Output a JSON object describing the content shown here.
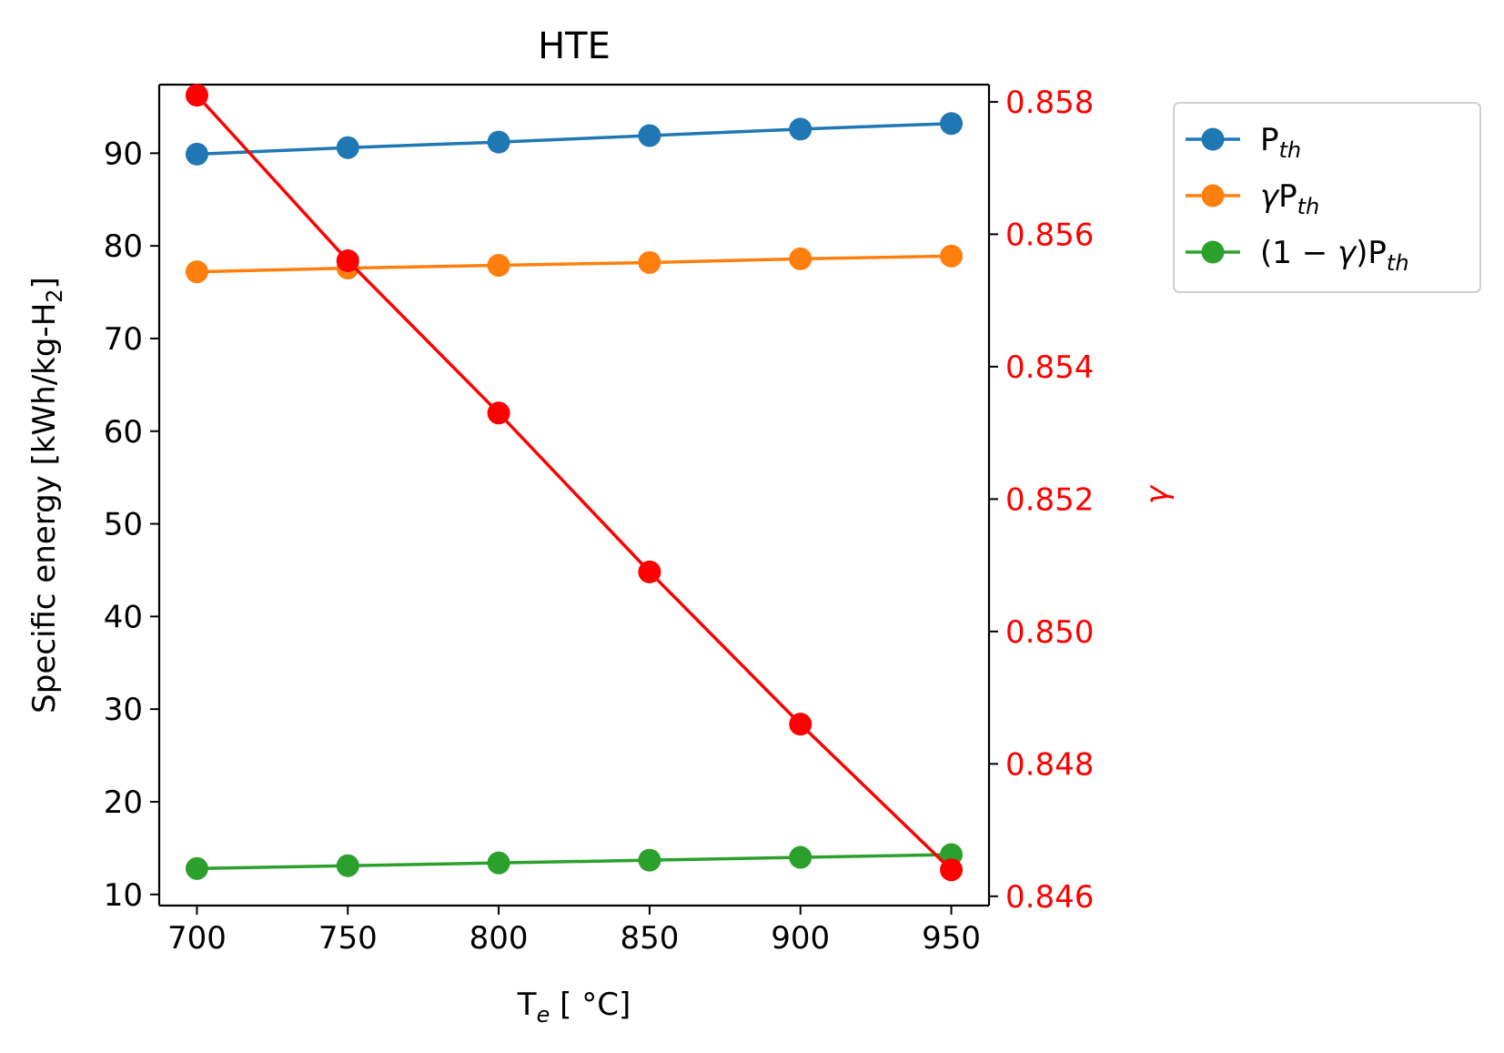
{
  "chart_data": {
    "type": "line",
    "title": "HTE",
    "x": [
      700,
      750,
      800,
      850,
      900,
      950
    ],
    "xlabel": {
      "main": "T",
      "sub": "e",
      "rest": " [ °C]"
    },
    "xlim": [
      687.5,
      962.5
    ],
    "xticks": [
      700,
      750,
      800,
      850,
      900,
      950
    ],
    "ylabel": {
      "main": "Specific energy [kWh/kg-H",
      "sub": "2",
      "rest": "]"
    },
    "ylim": [
      8.8,
      97.4
    ],
    "yticks": [
      10,
      20,
      30,
      40,
      50,
      60,
      70,
      80,
      90
    ],
    "y2label": "γ",
    "y2lim": [
      0.84586,
      0.85826
    ],
    "y2ticks": [
      "0.846",
      "0.848",
      "0.850",
      "0.852",
      "0.854",
      "0.856",
      "0.858"
    ],
    "y2color": "#ff0000",
    "grid": false,
    "legend_position": "outside-right-top",
    "series": [
      {
        "name": "P_th",
        "legend": {
          "pre": "",
          "main": "P",
          "sub": "th",
          "post": ""
        },
        "color": "#1f77b4",
        "axis": "left",
        "values": [
          89.9,
          90.6,
          91.2,
          91.9,
          92.6,
          93.2
        ]
      },
      {
        "name": "γP_th",
        "legend": {
          "pre": "γ",
          "main": "P",
          "sub": "th",
          "post": ""
        },
        "color": "#ff7f0e",
        "axis": "left",
        "values": [
          77.2,
          77.6,
          77.9,
          78.2,
          78.6,
          78.9
        ]
      },
      {
        "name": "(1−γ)P_th",
        "legend": {
          "pre": "(1 − γ)",
          "main": "P",
          "sub": "th",
          "post": ""
        },
        "color": "#2ca02c",
        "axis": "left",
        "values": [
          12.8,
          13.1,
          13.4,
          13.7,
          14.0,
          14.3
        ]
      },
      {
        "name": "",
        "legend": null,
        "color": "#ff0000",
        "axis": "right",
        "values": [
          0.8581,
          0.8556,
          0.8533,
          0.8509,
          0.8486,
          0.8464
        ]
      }
    ]
  }
}
